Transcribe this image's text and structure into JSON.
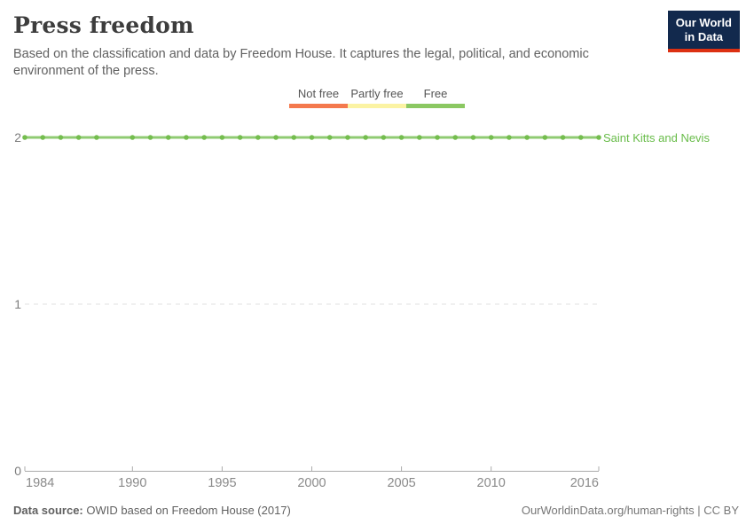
{
  "header": {
    "title": "Press freedom",
    "subtitle": "Based on the classification and data by Freedom House. It captures the legal, political, and economic environment of the press.",
    "logo": {
      "line1": "Our World",
      "line2": "in Data",
      "bg_color": "#12294d",
      "stripe_color": "#dc3012"
    }
  },
  "legend": {
    "items": [
      {
        "label": "Not free",
        "color": "#f4794d"
      },
      {
        "label": "Partly free",
        "color": "#fbf3a3"
      },
      {
        "label": "Free",
        "color": "#8bc862"
      }
    ]
  },
  "chart_data": {
    "type": "line",
    "title": "Press freedom",
    "xlabel": "",
    "ylabel": "",
    "xlim": [
      1984,
      2016
    ],
    "ylim": [
      0,
      2
    ],
    "x_ticks": [
      1984,
      1990,
      1995,
      2000,
      2005,
      2010,
      2016
    ],
    "y_ticks": [
      0,
      1,
      2
    ],
    "grid": "horizontal-dashed",
    "legend_position": "top-center",
    "category_scale": {
      "0": "Not free",
      "1": "Partly free",
      "2": "Free"
    },
    "series": [
      {
        "name": "Saint Kitts and Nevis",
        "line_color": "#8fcb72",
        "marker_color": "#74bd4e",
        "label_color": "#68bc49",
        "x": [
          1984,
          1985,
          1986,
          1987,
          1988,
          1990,
          1991,
          1992,
          1993,
          1994,
          1995,
          1996,
          1997,
          1998,
          1999,
          2000,
          2001,
          2002,
          2003,
          2004,
          2005,
          2006,
          2007,
          2008,
          2009,
          2010,
          2011,
          2012,
          2013,
          2014,
          2015,
          2016
        ],
        "values": [
          2,
          2,
          2,
          2,
          2,
          2,
          2,
          2,
          2,
          2,
          2,
          2,
          2,
          2,
          2,
          2,
          2,
          2,
          2,
          2,
          2,
          2,
          2,
          2,
          2,
          2,
          2,
          2,
          2,
          2,
          2,
          2
        ]
      }
    ],
    "axis_color": "#ababab",
    "grid_color": "#e2e2e2"
  },
  "footer": {
    "source_label": "Data source:",
    "source_text": " OWID based on Freedom House (2017)",
    "credit": "OurWorldinData.org/human-rights | CC BY"
  }
}
